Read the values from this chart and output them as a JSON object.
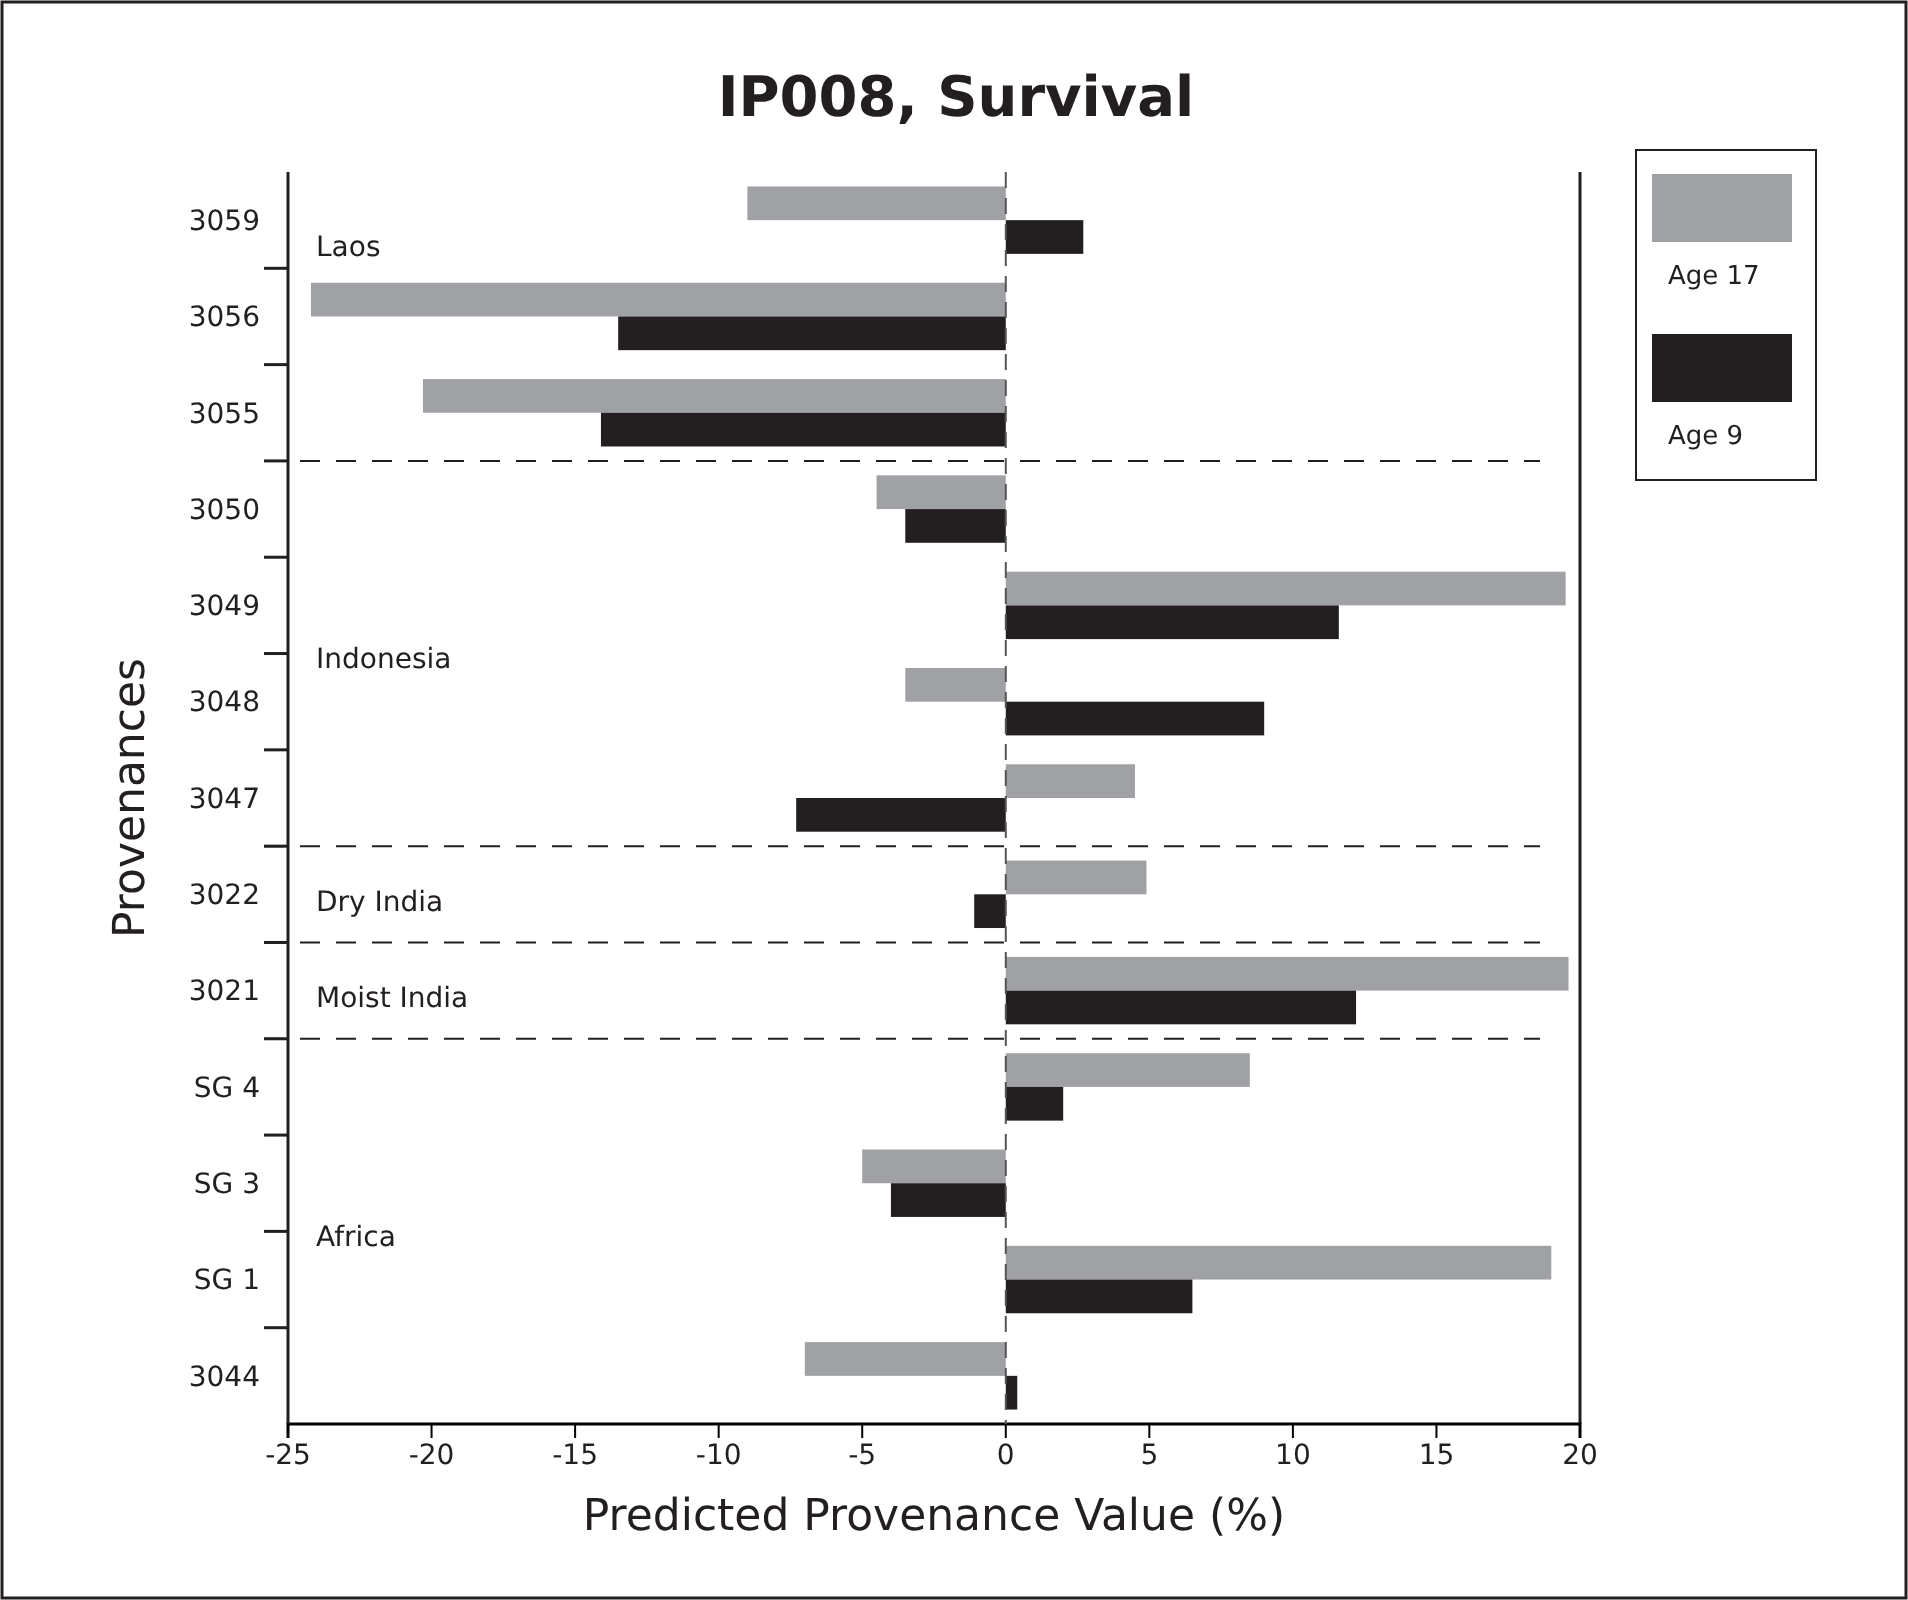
{
  "chart_data": {
    "type": "bar",
    "orientation": "horizontal",
    "title": "IP008, Survival",
    "xlabel": "Predicted Provenance Value (%)",
    "ylabel": "Provenances",
    "categories": [
      "3059",
      "3056",
      "3055",
      "3050",
      "3049",
      "3048",
      "3047",
      "3022",
      "3021",
      "SG 4",
      "SG 3",
      "SG 1",
      "3044"
    ],
    "series": [
      {
        "name": "Age 17",
        "color": "#a0a1a4",
        "values": [
          -9.0,
          -24.2,
          -20.3,
          -4.5,
          19.5,
          -3.5,
          4.5,
          4.9,
          19.6,
          8.5,
          -5.0,
          19.0,
          -7.0
        ]
      },
      {
        "name": "Age 9",
        "color": "#231f20",
        "values": [
          2.7,
          -13.5,
          -14.1,
          -3.5,
          11.6,
          9.0,
          -7.3,
          -1.1,
          12.2,
          2.0,
          -4.0,
          6.5,
          0.4
        ]
      }
    ],
    "xlim": [
      -25,
      20
    ],
    "xticks": [
      -25,
      -20,
      -15,
      -10,
      -5,
      0,
      5,
      10,
      15,
      20
    ],
    "ref_lines": [
      {
        "axis": "x",
        "value": 0,
        "line_style": "dashed"
      }
    ],
    "annotations": [
      "Laos",
      "Indonesia",
      "Dry India",
      "Moist India",
      "Africa"
    ],
    "legend": "right",
    "grid": false
  }
}
